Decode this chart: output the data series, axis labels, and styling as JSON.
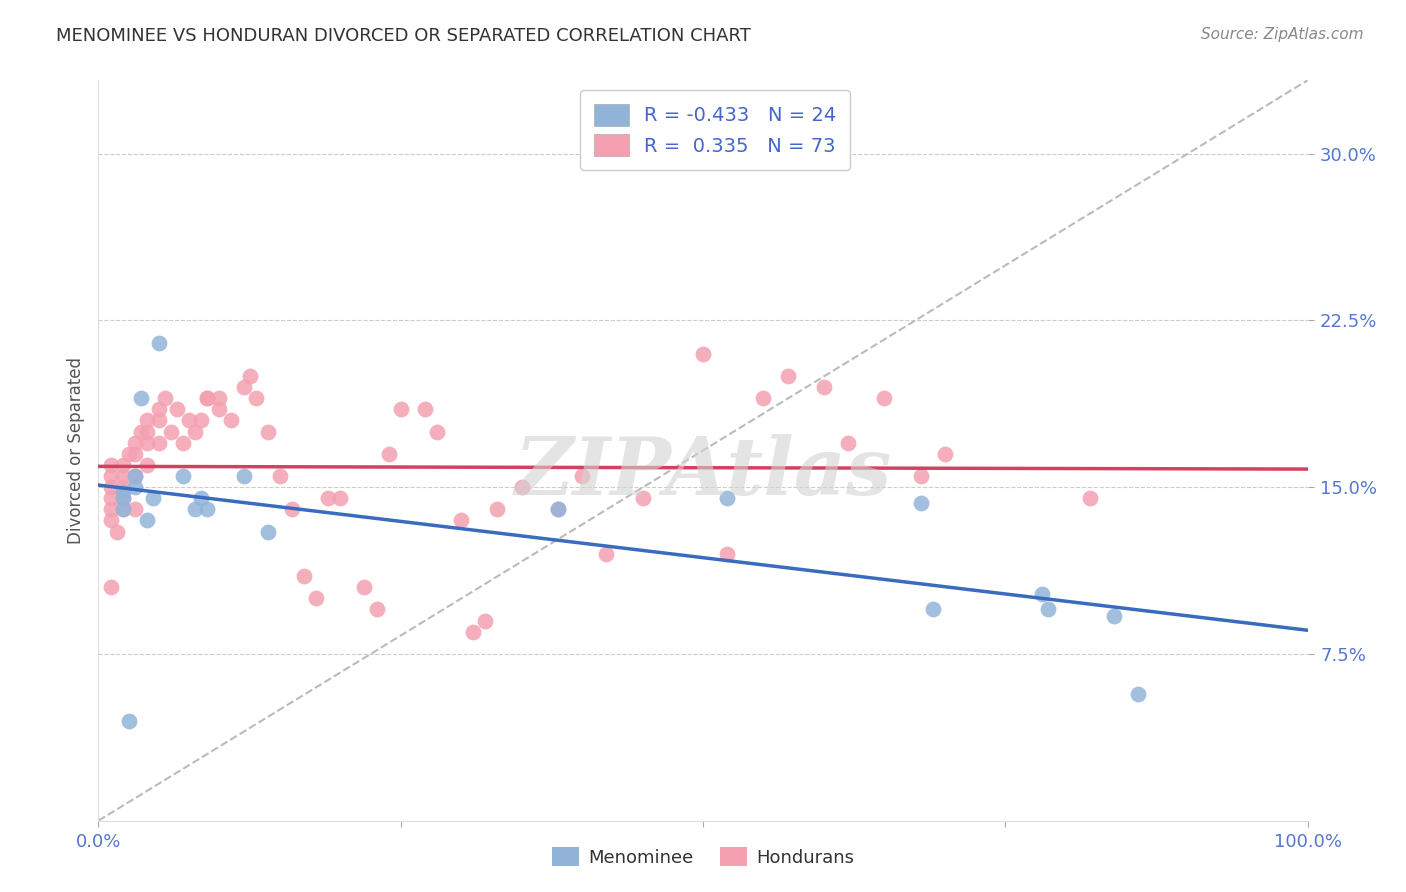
{
  "title": "MENOMINEE VS HONDURAN DIVORCED OR SEPARATED CORRELATION CHART",
  "source_text": "Source: ZipAtlas.com",
  "ylabel": "Divorced or Separated",
  "watermark": "ZIPAtlas",
  "xmin": 0.0,
  "xmax": 1.0,
  "ymin": 0.0,
  "ymax": 0.333,
  "yticks": [
    0.075,
    0.15,
    0.225,
    0.3
  ],
  "ytick_labels": [
    "7.5%",
    "15.0%",
    "22.5%",
    "30.0%"
  ],
  "xticks": [
    0.0,
    0.25,
    0.5,
    0.75,
    1.0
  ],
  "xtick_labels": [
    "0.0%",
    "",
    "",
    "",
    "100.0%"
  ],
  "grid_color": "#cccccc",
  "background_color": "#ffffff",
  "menominee_color": "#92b4d9",
  "honduran_color": "#f4a0b0",
  "menominee_R": -0.433,
  "menominee_N": 24,
  "honduran_R": 0.335,
  "honduran_N": 73,
  "menominee_line_color": "#3a6bbf",
  "honduran_line_color": "#d44060",
  "ref_line_color": "#bbbbbb",
  "legend_label_blue": "Menominee",
  "legend_label_pink": "Hondurans",
  "menominee_points_x": [
    0.02,
    0.02,
    0.02,
    0.025,
    0.03,
    0.03,
    0.035,
    0.04,
    0.045,
    0.05,
    0.07,
    0.08,
    0.085,
    0.09,
    0.12,
    0.14,
    0.38,
    0.52,
    0.68,
    0.69,
    0.78,
    0.785,
    0.84,
    0.86
  ],
  "menominee_points_y": [
    0.148,
    0.145,
    0.14,
    0.045,
    0.155,
    0.15,
    0.19,
    0.135,
    0.145,
    0.215,
    0.155,
    0.14,
    0.145,
    0.14,
    0.155,
    0.13,
    0.14,
    0.145,
    0.143,
    0.095,
    0.102,
    0.095,
    0.092,
    0.057
  ],
  "honduran_points_x": [
    0.01,
    0.01,
    0.01,
    0.01,
    0.01,
    0.01,
    0.01,
    0.015,
    0.02,
    0.02,
    0.02,
    0.02,
    0.02,
    0.025,
    0.03,
    0.03,
    0.03,
    0.03,
    0.035,
    0.04,
    0.04,
    0.04,
    0.04,
    0.05,
    0.05,
    0.05,
    0.055,
    0.06,
    0.065,
    0.07,
    0.075,
    0.08,
    0.085,
    0.09,
    0.09,
    0.1,
    0.1,
    0.11,
    0.12,
    0.125,
    0.13,
    0.14,
    0.15,
    0.16,
    0.17,
    0.18,
    0.19,
    0.2,
    0.22,
    0.23,
    0.24,
    0.25,
    0.27,
    0.28,
    0.3,
    0.31,
    0.32,
    0.33,
    0.35,
    0.38,
    0.4,
    0.42,
    0.45,
    0.5,
    0.52,
    0.55,
    0.57,
    0.6,
    0.62,
    0.65,
    0.68,
    0.7,
    0.82
  ],
  "honduran_points_y": [
    0.135,
    0.14,
    0.145,
    0.15,
    0.155,
    0.16,
    0.105,
    0.13,
    0.14,
    0.145,
    0.15,
    0.155,
    0.16,
    0.165,
    0.14,
    0.155,
    0.165,
    0.17,
    0.175,
    0.16,
    0.17,
    0.175,
    0.18,
    0.17,
    0.18,
    0.185,
    0.19,
    0.175,
    0.185,
    0.17,
    0.18,
    0.175,
    0.18,
    0.19,
    0.19,
    0.185,
    0.19,
    0.18,
    0.195,
    0.2,
    0.19,
    0.175,
    0.155,
    0.14,
    0.11,
    0.1,
    0.145,
    0.145,
    0.105,
    0.095,
    0.165,
    0.185,
    0.185,
    0.175,
    0.135,
    0.085,
    0.09,
    0.14,
    0.15,
    0.14,
    0.155,
    0.12,
    0.145,
    0.21,
    0.12,
    0.19,
    0.2,
    0.195,
    0.17,
    0.19,
    0.155,
    0.165,
    0.145
  ]
}
